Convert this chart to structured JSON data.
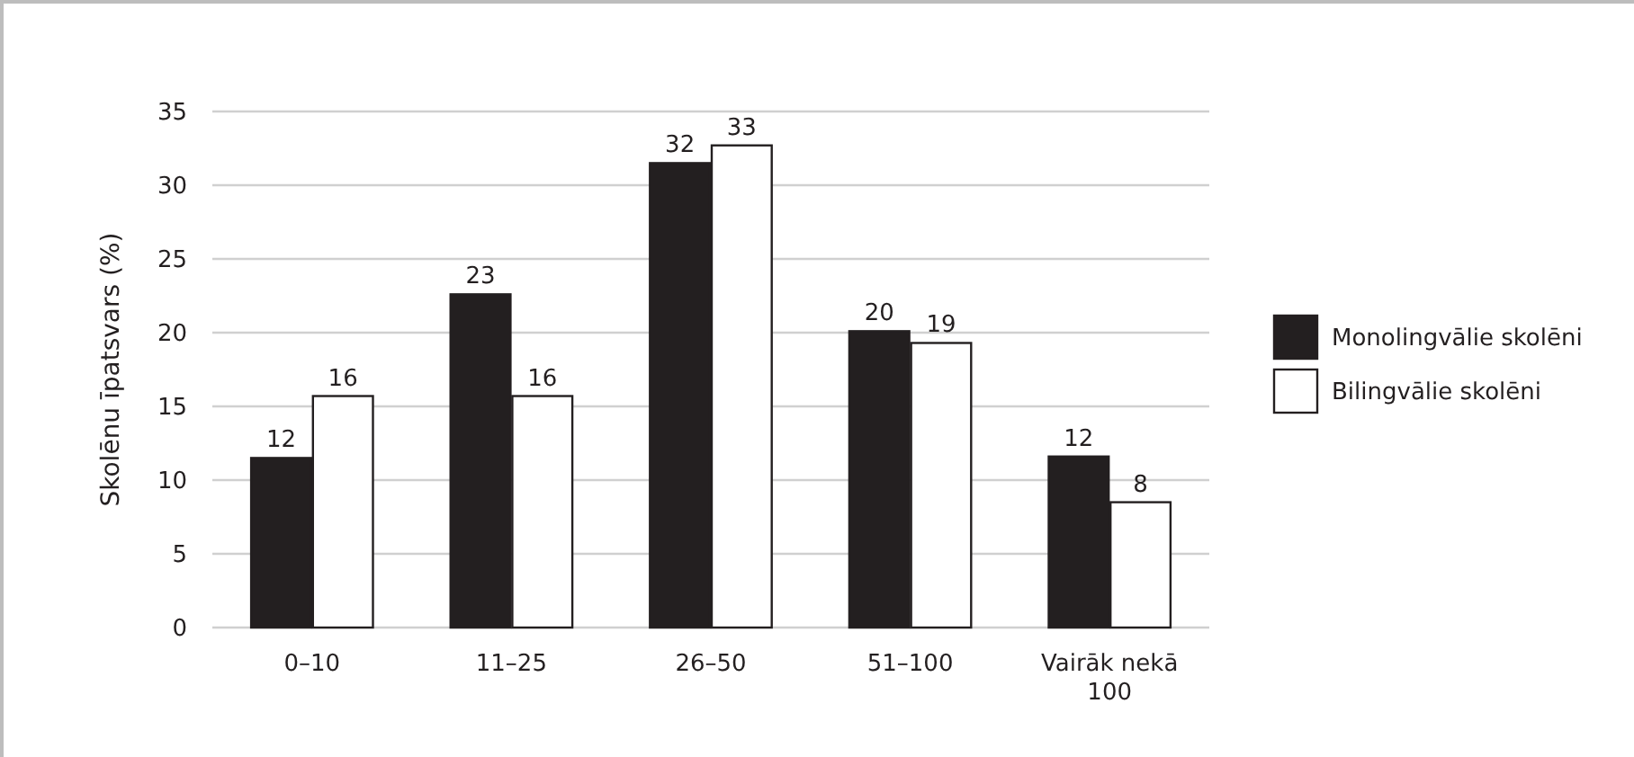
{
  "chart_data": {
    "type": "bar",
    "ylabel": "Skolēnu īpatsvars (%)",
    "categories": [
      "0–10",
      "11–25",
      "26–50",
      "51–100",
      "Vairāk nekā 100"
    ],
    "series": [
      {
        "name": "Monolingvālie skolēni",
        "color": "#231f20",
        "values": [
          11.5,
          22.6,
          31.5,
          20.1,
          11.6
        ],
        "value_labels": [
          "12",
          "23",
          "32",
          "20",
          "12"
        ]
      },
      {
        "name": "Bilingvālie skolēni",
        "color": "#ffffff",
        "values": [
          15.7,
          15.7,
          32.7,
          19.3,
          8.5
        ],
        "value_labels": [
          "16",
          "16",
          "33",
          "19",
          "8"
        ]
      }
    ],
    "ylim": [
      0,
      35
    ],
    "yticks": [
      0,
      5,
      10,
      15,
      20,
      25,
      30,
      35
    ],
    "grid": "y",
    "legend": "right"
  }
}
